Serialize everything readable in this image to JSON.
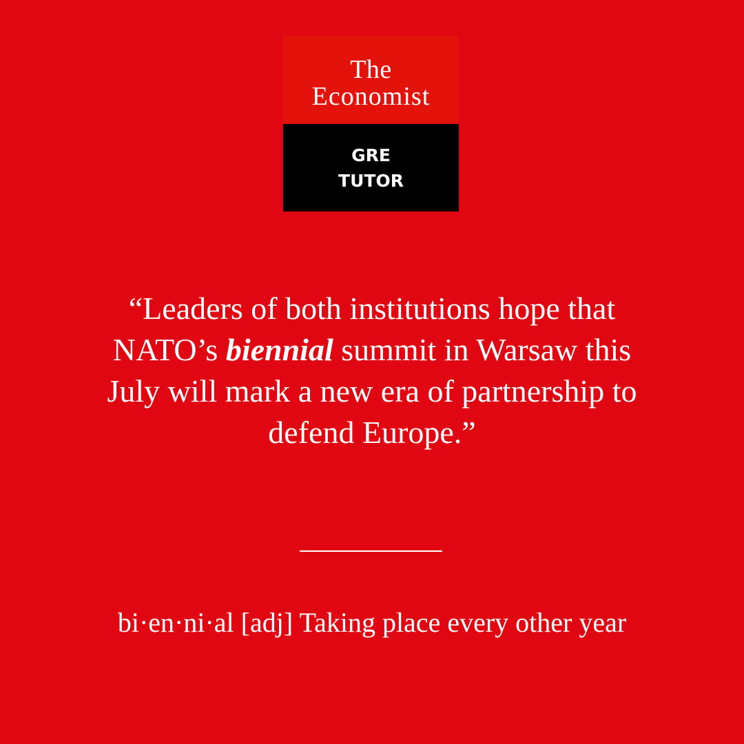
{
  "brand": {
    "line1": "The",
    "line2": "Economist",
    "product_line1": "GRE",
    "product_line2": "TUTOR"
  },
  "quote": {
    "before": "“Leaders of both institutions hope that NATO’s ",
    "keyword": "biennial",
    "after": " summit in Warsaw this July will mark a new era of partnership to defend Europe.”"
  },
  "definition": {
    "word": "bi·en·ni·al",
    "part_of_speech": "[adj]",
    "meaning": "Taking place every other year"
  },
  "colors": {
    "background": "#e00712",
    "logo_top": "#e3120b",
    "logo_bottom": "#000000",
    "text": "#ffffff"
  }
}
